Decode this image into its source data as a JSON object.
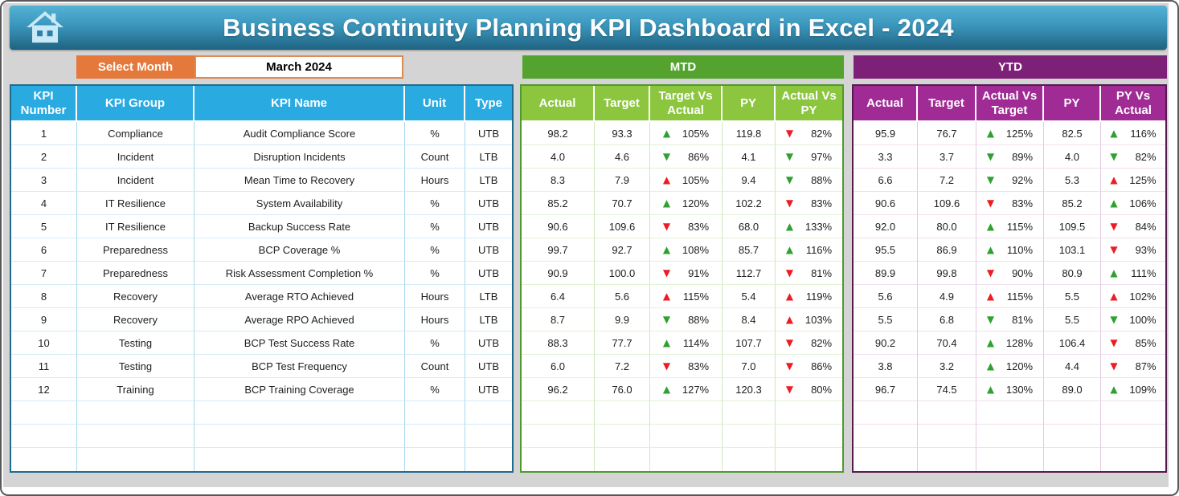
{
  "header": {
    "title": "Business Continuity Planning KPI Dashboard in Excel - 2024"
  },
  "controls": {
    "select_month_label": "Select Month",
    "selected_month": "March 2024"
  },
  "colors": {
    "banner_blue": "#3b96bc",
    "kpi_header_blue": "#29abe2",
    "mtd_title_green": "#54a32f",
    "mtd_header_green": "#8cc63f",
    "ytd_title_purple": "#7d2077",
    "ytd_header_purple": "#a12b95",
    "select_month_orange": "#e5793b",
    "arrow_green": "#2fa12e",
    "arrow_red": "#ec1c24"
  },
  "kpi_table": {
    "headers": [
      "KPI Number",
      "KPI Group",
      "KPI Name",
      "Unit",
      "Type"
    ],
    "empty_rows": 3,
    "rows": [
      {
        "number": "1",
        "group": "Compliance",
        "name": "Audit Compliance Score",
        "unit": "%",
        "type": "UTB"
      },
      {
        "number": "2",
        "group": "Incident",
        "name": "Disruption Incidents",
        "unit": "Count",
        "type": "LTB"
      },
      {
        "number": "3",
        "group": "Incident",
        "name": "Mean Time to Recovery",
        "unit": "Hours",
        "type": "LTB"
      },
      {
        "number": "4",
        "group": "IT Resilience",
        "name": "System Availability",
        "unit": "%",
        "type": "UTB"
      },
      {
        "number": "5",
        "group": "IT Resilience",
        "name": "Backup Success Rate",
        "unit": "%",
        "type": "UTB"
      },
      {
        "number": "6",
        "group": "Preparedness",
        "name": "BCP Coverage %",
        "unit": "%",
        "type": "UTB"
      },
      {
        "number": "7",
        "group": "Preparedness",
        "name": "Risk Assessment Completion %",
        "unit": "%",
        "type": "UTB"
      },
      {
        "number": "8",
        "group": "Recovery",
        "name": "Average RTO Achieved",
        "unit": "Hours",
        "type": "LTB"
      },
      {
        "number": "9",
        "group": "Recovery",
        "name": "Average RPO Achieved",
        "unit": "Hours",
        "type": "LTB"
      },
      {
        "number": "10",
        "group": "Testing",
        "name": "BCP Test Success Rate",
        "unit": "%",
        "type": "UTB"
      },
      {
        "number": "11",
        "group": "Testing",
        "name": "BCP Test Frequency",
        "unit": "Count",
        "type": "UTB"
      },
      {
        "number": "12",
        "group": "Training",
        "name": "BCP Training Coverage",
        "unit": "%",
        "type": "UTB"
      }
    ]
  },
  "mtd": {
    "title": "MTD",
    "headers": [
      "Actual",
      "Target",
      "Target Vs Actual",
      "PY",
      "Actual Vs PY"
    ],
    "empty_rows": 3,
    "rows": [
      {
        "actual": "98.2",
        "target": "93.3",
        "target_vs_actual": {
          "dir": "up",
          "color": "green",
          "value": "105%"
        },
        "py": "119.8",
        "actual_vs_py": {
          "dir": "down",
          "color": "red",
          "value": "82%"
        }
      },
      {
        "actual": "4.0",
        "target": "4.6",
        "target_vs_actual": {
          "dir": "down",
          "color": "green",
          "value": "86%"
        },
        "py": "4.1",
        "actual_vs_py": {
          "dir": "down",
          "color": "green",
          "value": "97%"
        }
      },
      {
        "actual": "8.3",
        "target": "7.9",
        "target_vs_actual": {
          "dir": "up",
          "color": "red",
          "value": "105%"
        },
        "py": "9.4",
        "actual_vs_py": {
          "dir": "down",
          "color": "green",
          "value": "88%"
        }
      },
      {
        "actual": "85.2",
        "target": "70.7",
        "target_vs_actual": {
          "dir": "up",
          "color": "green",
          "value": "120%"
        },
        "py": "102.2",
        "actual_vs_py": {
          "dir": "down",
          "color": "red",
          "value": "83%"
        }
      },
      {
        "actual": "90.6",
        "target": "109.6",
        "target_vs_actual": {
          "dir": "down",
          "color": "red",
          "value": "83%"
        },
        "py": "68.0",
        "actual_vs_py": {
          "dir": "up",
          "color": "green",
          "value": "133%"
        }
      },
      {
        "actual": "99.7",
        "target": "92.7",
        "target_vs_actual": {
          "dir": "up",
          "color": "green",
          "value": "108%"
        },
        "py": "85.7",
        "actual_vs_py": {
          "dir": "up",
          "color": "green",
          "value": "116%"
        }
      },
      {
        "actual": "90.9",
        "target": "100.0",
        "target_vs_actual": {
          "dir": "down",
          "color": "red",
          "value": "91%"
        },
        "py": "112.7",
        "actual_vs_py": {
          "dir": "down",
          "color": "red",
          "value": "81%"
        }
      },
      {
        "actual": "6.4",
        "target": "5.6",
        "target_vs_actual": {
          "dir": "up",
          "color": "red",
          "value": "115%"
        },
        "py": "5.4",
        "actual_vs_py": {
          "dir": "up",
          "color": "red",
          "value": "119%"
        }
      },
      {
        "actual": "8.7",
        "target": "9.9",
        "target_vs_actual": {
          "dir": "down",
          "color": "green",
          "value": "88%"
        },
        "py": "8.4",
        "actual_vs_py": {
          "dir": "up",
          "color": "red",
          "value": "103%"
        }
      },
      {
        "actual": "88.3",
        "target": "77.7",
        "target_vs_actual": {
          "dir": "up",
          "color": "green",
          "value": "114%"
        },
        "py": "107.7",
        "actual_vs_py": {
          "dir": "down",
          "color": "red",
          "value": "82%"
        }
      },
      {
        "actual": "6.0",
        "target": "7.2",
        "target_vs_actual": {
          "dir": "down",
          "color": "red",
          "value": "83%"
        },
        "py": "7.0",
        "actual_vs_py": {
          "dir": "down",
          "color": "red",
          "value": "86%"
        }
      },
      {
        "actual": "96.2",
        "target": "76.0",
        "target_vs_actual": {
          "dir": "up",
          "color": "green",
          "value": "127%"
        },
        "py": "120.3",
        "actual_vs_py": {
          "dir": "down",
          "color": "red",
          "value": "80%"
        }
      }
    ]
  },
  "ytd": {
    "title": "YTD",
    "headers": [
      "Actual",
      "Target",
      "Actual Vs Target",
      "PY",
      "PY Vs Actual"
    ],
    "empty_rows": 3,
    "rows": [
      {
        "actual": "95.9",
        "target": "76.7",
        "actual_vs_target": {
          "dir": "up",
          "color": "green",
          "value": "125%"
        },
        "py": "82.5",
        "py_vs_actual": {
          "dir": "up",
          "color": "green",
          "value": "116%"
        }
      },
      {
        "actual": "3.3",
        "target": "3.7",
        "actual_vs_target": {
          "dir": "down",
          "color": "green",
          "value": "89%"
        },
        "py": "4.0",
        "py_vs_actual": {
          "dir": "down",
          "color": "green",
          "value": "82%"
        }
      },
      {
        "actual": "6.6",
        "target": "7.2",
        "actual_vs_target": {
          "dir": "down",
          "color": "green",
          "value": "92%"
        },
        "py": "5.3",
        "py_vs_actual": {
          "dir": "up",
          "color": "red",
          "value": "125%"
        }
      },
      {
        "actual": "90.6",
        "target": "109.6",
        "actual_vs_target": {
          "dir": "down",
          "color": "red",
          "value": "83%"
        },
        "py": "85.2",
        "py_vs_actual": {
          "dir": "up",
          "color": "green",
          "value": "106%"
        }
      },
      {
        "actual": "92.0",
        "target": "80.0",
        "actual_vs_target": {
          "dir": "up",
          "color": "green",
          "value": "115%"
        },
        "py": "109.5",
        "py_vs_actual": {
          "dir": "down",
          "color": "red",
          "value": "84%"
        }
      },
      {
        "actual": "95.5",
        "target": "86.9",
        "actual_vs_target": {
          "dir": "up",
          "color": "green",
          "value": "110%"
        },
        "py": "103.1",
        "py_vs_actual": {
          "dir": "down",
          "color": "red",
          "value": "93%"
        }
      },
      {
        "actual": "89.9",
        "target": "99.8",
        "actual_vs_target": {
          "dir": "down",
          "color": "red",
          "value": "90%"
        },
        "py": "80.9",
        "py_vs_actual": {
          "dir": "up",
          "color": "green",
          "value": "111%"
        }
      },
      {
        "actual": "5.6",
        "target": "4.9",
        "actual_vs_target": {
          "dir": "up",
          "color": "red",
          "value": "115%"
        },
        "py": "5.5",
        "py_vs_actual": {
          "dir": "up",
          "color": "red",
          "value": "102%"
        }
      },
      {
        "actual": "5.5",
        "target": "6.8",
        "actual_vs_target": {
          "dir": "down",
          "color": "green",
          "value": "81%"
        },
        "py": "5.5",
        "py_vs_actual": {
          "dir": "down",
          "color": "green",
          "value": "100%"
        }
      },
      {
        "actual": "90.2",
        "target": "70.4",
        "actual_vs_target": {
          "dir": "up",
          "color": "green",
          "value": "128%"
        },
        "py": "106.4",
        "py_vs_actual": {
          "dir": "down",
          "color": "red",
          "value": "85%"
        }
      },
      {
        "actual": "3.8",
        "target": "3.2",
        "actual_vs_target": {
          "dir": "up",
          "color": "green",
          "value": "120%"
        },
        "py": "4.4",
        "py_vs_actual": {
          "dir": "down",
          "color": "red",
          "value": "87%"
        }
      },
      {
        "actual": "96.7",
        "target": "74.5",
        "actual_vs_target": {
          "dir": "up",
          "color": "green",
          "value": "130%"
        },
        "py": "89.0",
        "py_vs_actual": {
          "dir": "up",
          "color": "green",
          "value": "109%"
        }
      }
    ]
  }
}
